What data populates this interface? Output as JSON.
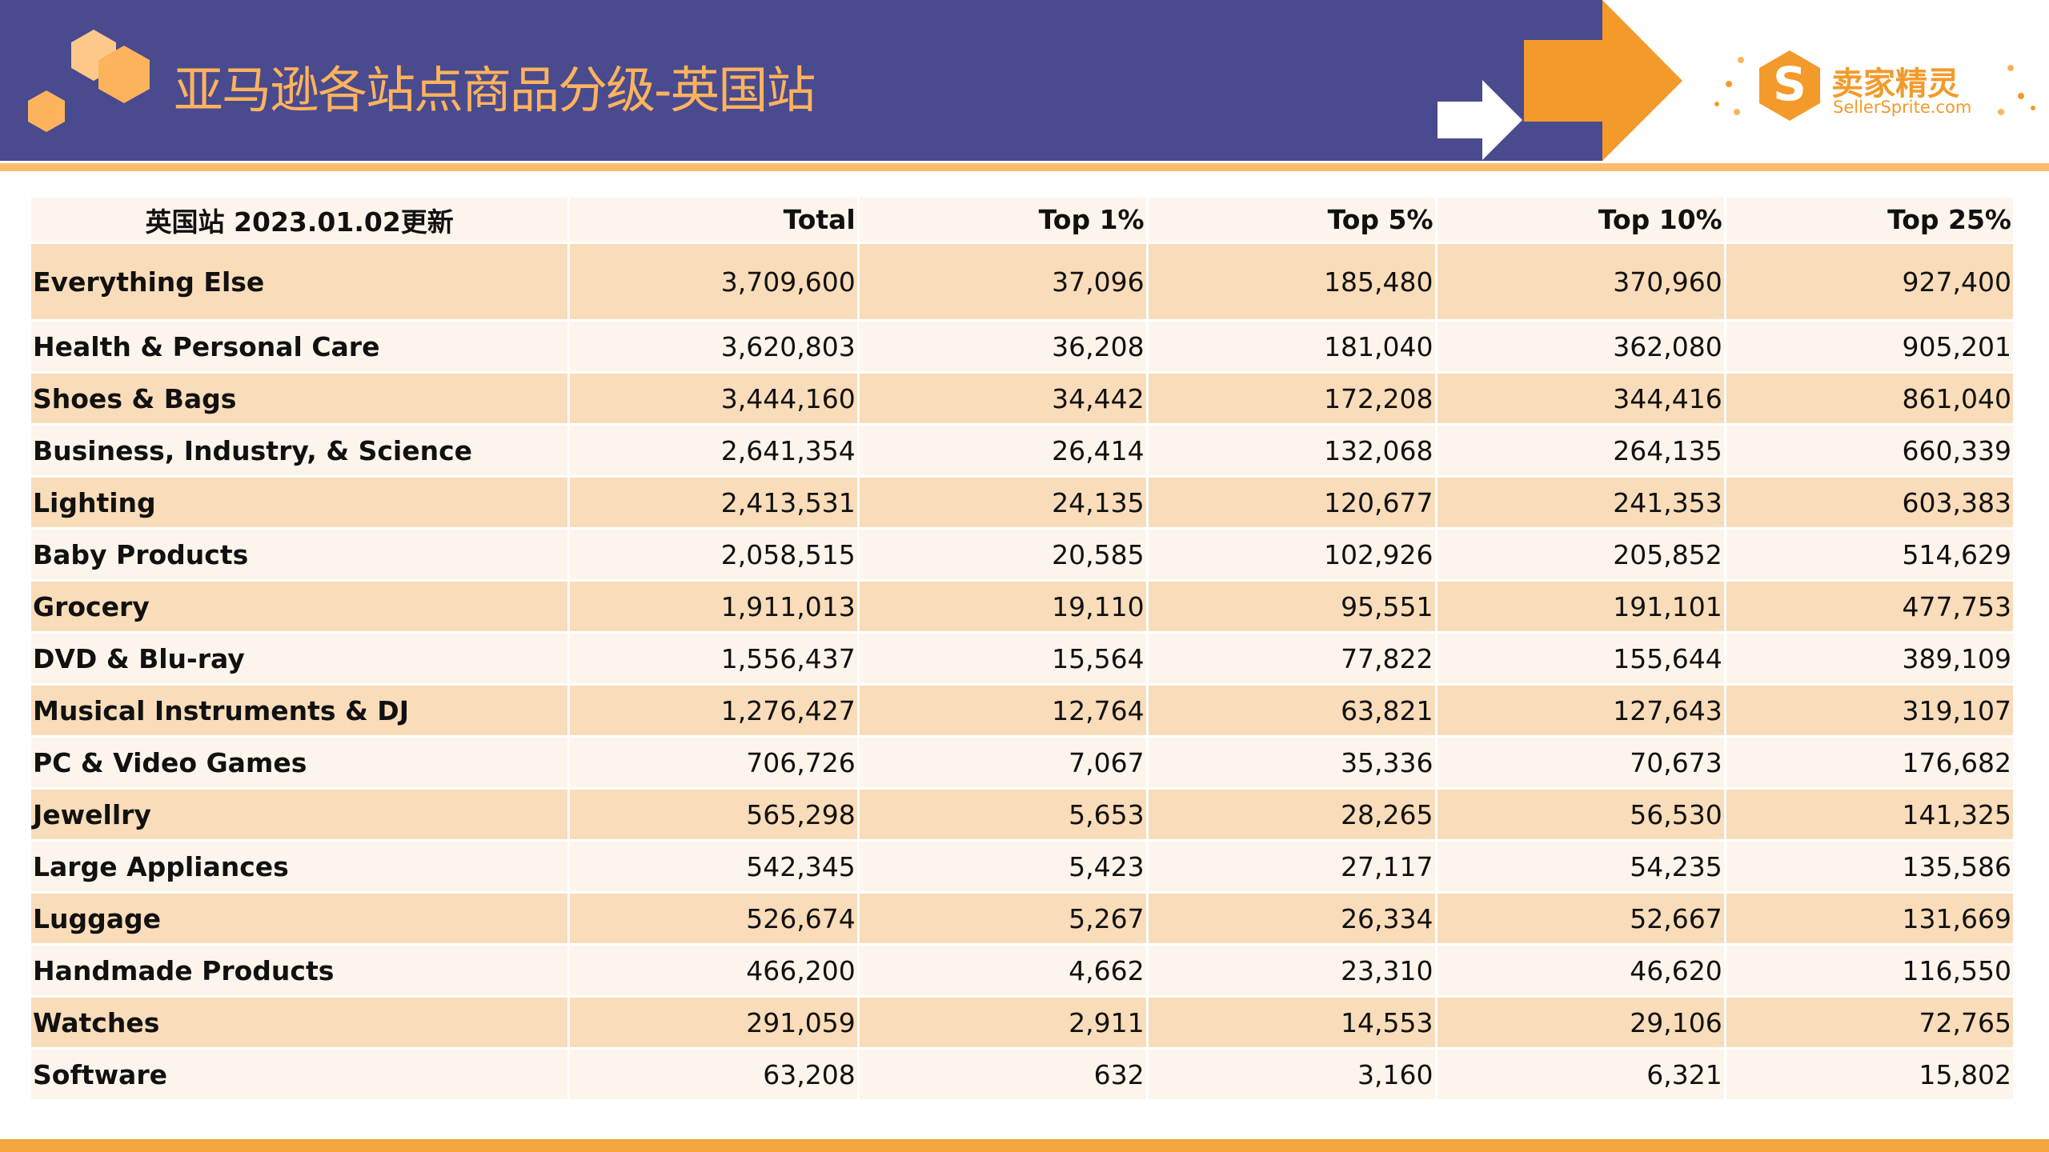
{
  "header": {
    "title": "亚马逊各站点商品分级-英国站",
    "logo_name": "卖家精灵",
    "logo_site": "SellerSprite.com"
  },
  "colors": {
    "header_bg": "#4a4a8f",
    "accent": "#f39a2b",
    "title": "#fdb35c",
    "row_odd": "#f9dcb9",
    "row_even": "#fdf5ec"
  },
  "table": {
    "columns": [
      "英国站 2023.01.02更新",
      "Total",
      "Top 1%",
      "Top 5%",
      "Top 10%",
      "Top 25%"
    ],
    "rows": [
      [
        "Everything Else",
        "3,709,600",
        "37,096",
        "185,480",
        "370,960",
        "927,400"
      ],
      [
        "Health & Personal Care",
        "3,620,803",
        "36,208",
        "181,040",
        "362,080",
        "905,201"
      ],
      [
        "Shoes & Bags",
        "3,444,160",
        "34,442",
        "172,208",
        "344,416",
        "861,040"
      ],
      [
        "Business, Industry, & Science",
        "2,641,354",
        "26,414",
        "132,068",
        "264,135",
        "660,339"
      ],
      [
        "Lighting",
        "2,413,531",
        "24,135",
        "120,677",
        "241,353",
        "603,383"
      ],
      [
        "Baby Products",
        "2,058,515",
        "20,585",
        "102,926",
        "205,852",
        "514,629"
      ],
      [
        "Grocery",
        "1,911,013",
        "19,110",
        "95,551",
        "191,101",
        "477,753"
      ],
      [
        "DVD & Blu-ray",
        "1,556,437",
        "15,564",
        "77,822",
        "155,644",
        "389,109"
      ],
      [
        "Musical Instruments & DJ",
        "1,276,427",
        "12,764",
        "63,821",
        "127,643",
        "319,107"
      ],
      [
        "PC & Video Games",
        "706,726",
        "7,067",
        "35,336",
        "70,673",
        "176,682"
      ],
      [
        "Jewellry",
        "565,298",
        "5,653",
        "28,265",
        "56,530",
        "141,325"
      ],
      [
        "Large Appliances",
        "542,345",
        "5,423",
        "27,117",
        "54,235",
        "135,586"
      ],
      [
        "Luggage",
        "526,674",
        "5,267",
        "26,334",
        "52,667",
        "131,669"
      ],
      [
        "Handmade Products",
        "466,200",
        "4,662",
        "23,310",
        "46,620",
        "116,550"
      ],
      [
        "Watches",
        "291,059",
        "2,911",
        "14,553",
        "29,106",
        "72,765"
      ],
      [
        "Software",
        "63,208",
        "632",
        "3,160",
        "6,321",
        "15,802"
      ]
    ]
  }
}
